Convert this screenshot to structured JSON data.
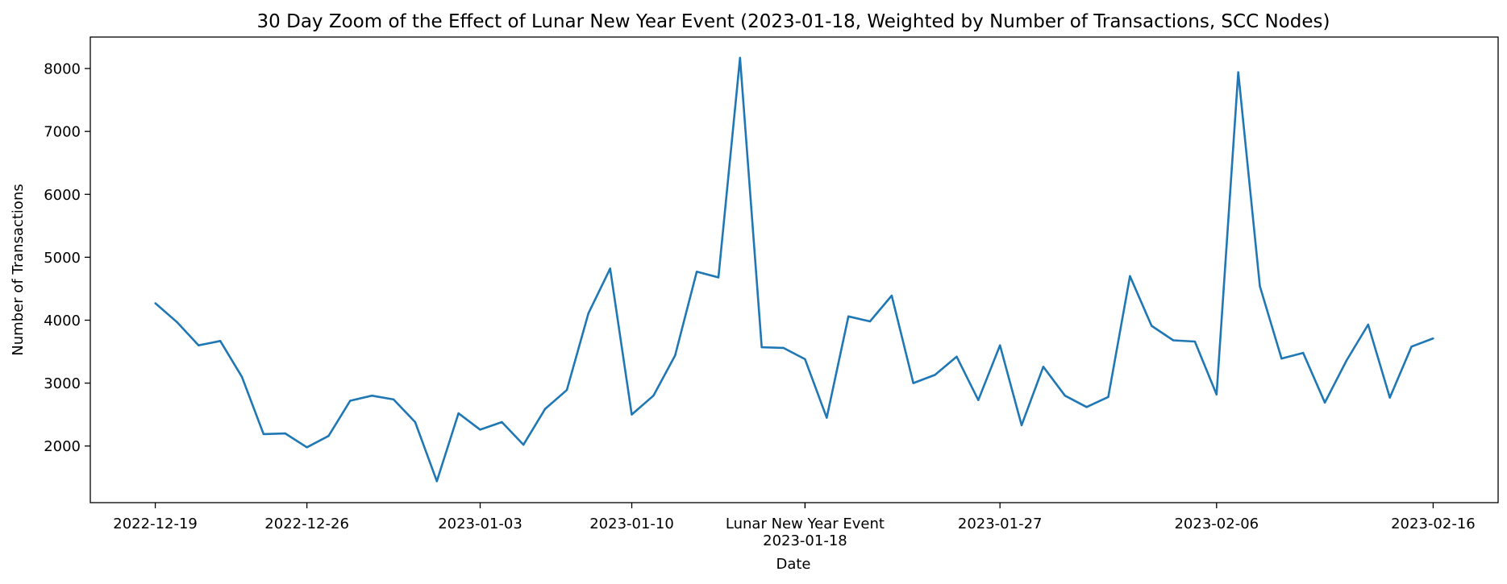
{
  "chart_data": {
    "type": "line",
    "title": "30 Day Zoom of the Effect of Lunar New Year Event (2023-01-18, Weighted by Number of Transactions, SCC Nodes)",
    "xlabel": "Date",
    "ylabel": "Number of Transactions",
    "ylim": [
      1100,
      8500
    ],
    "yticks": [
      2000,
      3000,
      4000,
      5000,
      6000,
      7000,
      8000
    ],
    "xlim": [
      "2022-12-16",
      "2023-02-19"
    ],
    "xticks": [
      {
        "date": "2022-12-19",
        "label": "2022-12-19"
      },
      {
        "date": "2022-12-26",
        "label": "2022-12-26"
      },
      {
        "date": "2023-01-03",
        "label": "2023-01-03"
      },
      {
        "date": "2023-01-10",
        "label": "2023-01-10"
      },
      {
        "date": "2023-01-18",
        "label": "2023-01-18"
      },
      {
        "date": "2023-01-27",
        "label": "2023-01-27"
      },
      {
        "date": "2023-02-06",
        "label": "2023-02-06"
      },
      {
        "date": "2023-02-16",
        "label": "2023-02-16"
      }
    ],
    "event": {
      "date": "2023-01-18",
      "label": "Lunar New Year Event"
    },
    "grid": false,
    "series": [
      {
        "color": "#1f77b4",
        "x": [
          "2022-12-19",
          "2022-12-20",
          "2022-12-21",
          "2022-12-22",
          "2022-12-23",
          "2022-12-24",
          "2022-12-25",
          "2022-12-26",
          "2022-12-27",
          "2022-12-28",
          "2022-12-29",
          "2022-12-30",
          "2022-12-31",
          "2023-01-01",
          "2023-01-02",
          "2023-01-03",
          "2023-01-04",
          "2023-01-05",
          "2023-01-06",
          "2023-01-07",
          "2023-01-08",
          "2023-01-09",
          "2023-01-10",
          "2023-01-11",
          "2023-01-12",
          "2023-01-13",
          "2023-01-14",
          "2023-01-15",
          "2023-01-16",
          "2023-01-17",
          "2023-01-18",
          "2023-01-19",
          "2023-01-20",
          "2023-01-21",
          "2023-01-22",
          "2023-01-23",
          "2023-01-24",
          "2023-01-25",
          "2023-01-26",
          "2023-01-27",
          "2023-01-28",
          "2023-01-29",
          "2023-01-30",
          "2023-01-31",
          "2023-02-01",
          "2023-02-02",
          "2023-02-03",
          "2023-02-04",
          "2023-02-05",
          "2023-02-06",
          "2023-02-07",
          "2023-02-08",
          "2023-02-09",
          "2023-02-10",
          "2023-02-11",
          "2023-02-12",
          "2023-02-13",
          "2023-02-14",
          "2023-02-15",
          "2023-02-16"
        ],
        "y": [
          4270,
          3970,
          3600,
          3670,
          3100,
          2190,
          2200,
          1980,
          2160,
          2720,
          2800,
          2740,
          2380,
          1440,
          2520,
          2260,
          2380,
          2020,
          2590,
          2890,
          4110,
          4820,
          2500,
          2800,
          3440,
          4770,
          4680,
          8170,
          3570,
          3560,
          3380,
          2450,
          4060,
          3980,
          4390,
          3000,
          3130,
          3420,
          2730,
          3600,
          2330,
          3260,
          2800,
          2620,
          2780,
          4700,
          3910,
          3680,
          3660,
          2820,
          7940,
          4540,
          3390,
          3480,
          2690,
          3360,
          3930,
          2770,
          3580,
          3710
        ]
      }
    ]
  }
}
